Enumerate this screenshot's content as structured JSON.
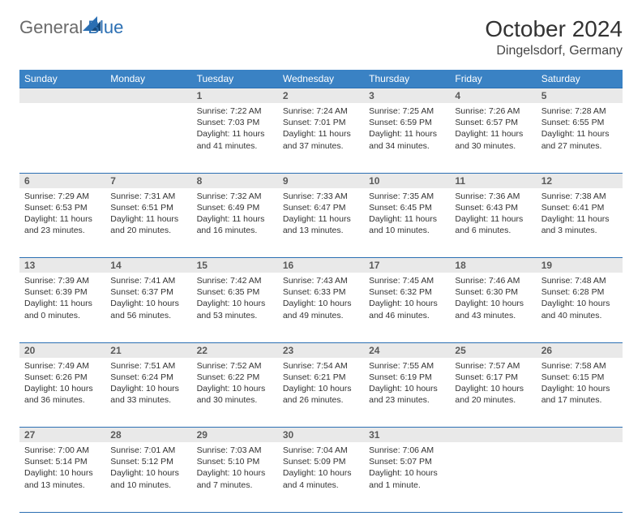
{
  "logo": {
    "text_general": "General",
    "text_blue": "Blue"
  },
  "title": {
    "month": "October 2024",
    "location": "Dingelsdorf, Germany"
  },
  "colors": {
    "header_bg": "#3a82c4",
    "header_text": "#ffffff",
    "border": "#2b6fb3",
    "daynum_bg": "#e9e9e9",
    "daynum_text": "#5a5a5a",
    "logo_gray": "#6a6a6a",
    "logo_blue": "#2b6fb3"
  },
  "day_headers": [
    "Sunday",
    "Monday",
    "Tuesday",
    "Wednesday",
    "Thursday",
    "Friday",
    "Saturday"
  ],
  "weeks": [
    {
      "nums": [
        "",
        "",
        "1",
        "2",
        "3",
        "4",
        "5"
      ],
      "cells": [
        {},
        {},
        {
          "sunrise": "Sunrise: 7:22 AM",
          "sunset": "Sunset: 7:03 PM",
          "daylight1": "Daylight: 11 hours",
          "daylight2": "and 41 minutes."
        },
        {
          "sunrise": "Sunrise: 7:24 AM",
          "sunset": "Sunset: 7:01 PM",
          "daylight1": "Daylight: 11 hours",
          "daylight2": "and 37 minutes."
        },
        {
          "sunrise": "Sunrise: 7:25 AM",
          "sunset": "Sunset: 6:59 PM",
          "daylight1": "Daylight: 11 hours",
          "daylight2": "and 34 minutes."
        },
        {
          "sunrise": "Sunrise: 7:26 AM",
          "sunset": "Sunset: 6:57 PM",
          "daylight1": "Daylight: 11 hours",
          "daylight2": "and 30 minutes."
        },
        {
          "sunrise": "Sunrise: 7:28 AM",
          "sunset": "Sunset: 6:55 PM",
          "daylight1": "Daylight: 11 hours",
          "daylight2": "and 27 minutes."
        }
      ]
    },
    {
      "nums": [
        "6",
        "7",
        "8",
        "9",
        "10",
        "11",
        "12"
      ],
      "cells": [
        {
          "sunrise": "Sunrise: 7:29 AM",
          "sunset": "Sunset: 6:53 PM",
          "daylight1": "Daylight: 11 hours",
          "daylight2": "and 23 minutes."
        },
        {
          "sunrise": "Sunrise: 7:31 AM",
          "sunset": "Sunset: 6:51 PM",
          "daylight1": "Daylight: 11 hours",
          "daylight2": "and 20 minutes."
        },
        {
          "sunrise": "Sunrise: 7:32 AM",
          "sunset": "Sunset: 6:49 PM",
          "daylight1": "Daylight: 11 hours",
          "daylight2": "and 16 minutes."
        },
        {
          "sunrise": "Sunrise: 7:33 AM",
          "sunset": "Sunset: 6:47 PM",
          "daylight1": "Daylight: 11 hours",
          "daylight2": "and 13 minutes."
        },
        {
          "sunrise": "Sunrise: 7:35 AM",
          "sunset": "Sunset: 6:45 PM",
          "daylight1": "Daylight: 11 hours",
          "daylight2": "and 10 minutes."
        },
        {
          "sunrise": "Sunrise: 7:36 AM",
          "sunset": "Sunset: 6:43 PM",
          "daylight1": "Daylight: 11 hours",
          "daylight2": "and 6 minutes."
        },
        {
          "sunrise": "Sunrise: 7:38 AM",
          "sunset": "Sunset: 6:41 PM",
          "daylight1": "Daylight: 11 hours",
          "daylight2": "and 3 minutes."
        }
      ]
    },
    {
      "nums": [
        "13",
        "14",
        "15",
        "16",
        "17",
        "18",
        "19"
      ],
      "cells": [
        {
          "sunrise": "Sunrise: 7:39 AM",
          "sunset": "Sunset: 6:39 PM",
          "daylight1": "Daylight: 11 hours",
          "daylight2": "and 0 minutes."
        },
        {
          "sunrise": "Sunrise: 7:41 AM",
          "sunset": "Sunset: 6:37 PM",
          "daylight1": "Daylight: 10 hours",
          "daylight2": "and 56 minutes."
        },
        {
          "sunrise": "Sunrise: 7:42 AM",
          "sunset": "Sunset: 6:35 PM",
          "daylight1": "Daylight: 10 hours",
          "daylight2": "and 53 minutes."
        },
        {
          "sunrise": "Sunrise: 7:43 AM",
          "sunset": "Sunset: 6:33 PM",
          "daylight1": "Daylight: 10 hours",
          "daylight2": "and 49 minutes."
        },
        {
          "sunrise": "Sunrise: 7:45 AM",
          "sunset": "Sunset: 6:32 PM",
          "daylight1": "Daylight: 10 hours",
          "daylight2": "and 46 minutes."
        },
        {
          "sunrise": "Sunrise: 7:46 AM",
          "sunset": "Sunset: 6:30 PM",
          "daylight1": "Daylight: 10 hours",
          "daylight2": "and 43 minutes."
        },
        {
          "sunrise": "Sunrise: 7:48 AM",
          "sunset": "Sunset: 6:28 PM",
          "daylight1": "Daylight: 10 hours",
          "daylight2": "and 40 minutes."
        }
      ]
    },
    {
      "nums": [
        "20",
        "21",
        "22",
        "23",
        "24",
        "25",
        "26"
      ],
      "cells": [
        {
          "sunrise": "Sunrise: 7:49 AM",
          "sunset": "Sunset: 6:26 PM",
          "daylight1": "Daylight: 10 hours",
          "daylight2": "and 36 minutes."
        },
        {
          "sunrise": "Sunrise: 7:51 AM",
          "sunset": "Sunset: 6:24 PM",
          "daylight1": "Daylight: 10 hours",
          "daylight2": "and 33 minutes."
        },
        {
          "sunrise": "Sunrise: 7:52 AM",
          "sunset": "Sunset: 6:22 PM",
          "daylight1": "Daylight: 10 hours",
          "daylight2": "and 30 minutes."
        },
        {
          "sunrise": "Sunrise: 7:54 AM",
          "sunset": "Sunset: 6:21 PM",
          "daylight1": "Daylight: 10 hours",
          "daylight2": "and 26 minutes."
        },
        {
          "sunrise": "Sunrise: 7:55 AM",
          "sunset": "Sunset: 6:19 PM",
          "daylight1": "Daylight: 10 hours",
          "daylight2": "and 23 minutes."
        },
        {
          "sunrise": "Sunrise: 7:57 AM",
          "sunset": "Sunset: 6:17 PM",
          "daylight1": "Daylight: 10 hours",
          "daylight2": "and 20 minutes."
        },
        {
          "sunrise": "Sunrise: 7:58 AM",
          "sunset": "Sunset: 6:15 PM",
          "daylight1": "Daylight: 10 hours",
          "daylight2": "and 17 minutes."
        }
      ]
    },
    {
      "nums": [
        "27",
        "28",
        "29",
        "30",
        "31",
        "",
        ""
      ],
      "cells": [
        {
          "sunrise": "Sunrise: 7:00 AM",
          "sunset": "Sunset: 5:14 PM",
          "daylight1": "Daylight: 10 hours",
          "daylight2": "and 13 minutes."
        },
        {
          "sunrise": "Sunrise: 7:01 AM",
          "sunset": "Sunset: 5:12 PM",
          "daylight1": "Daylight: 10 hours",
          "daylight2": "and 10 minutes."
        },
        {
          "sunrise": "Sunrise: 7:03 AM",
          "sunset": "Sunset: 5:10 PM",
          "daylight1": "Daylight: 10 hours",
          "daylight2": "and 7 minutes."
        },
        {
          "sunrise": "Sunrise: 7:04 AM",
          "sunset": "Sunset: 5:09 PM",
          "daylight1": "Daylight: 10 hours",
          "daylight2": "and 4 minutes."
        },
        {
          "sunrise": "Sunrise: 7:06 AM",
          "sunset": "Sunset: 5:07 PM",
          "daylight1": "Daylight: 10 hours",
          "daylight2": "and 1 minute."
        },
        {},
        {}
      ]
    }
  ]
}
